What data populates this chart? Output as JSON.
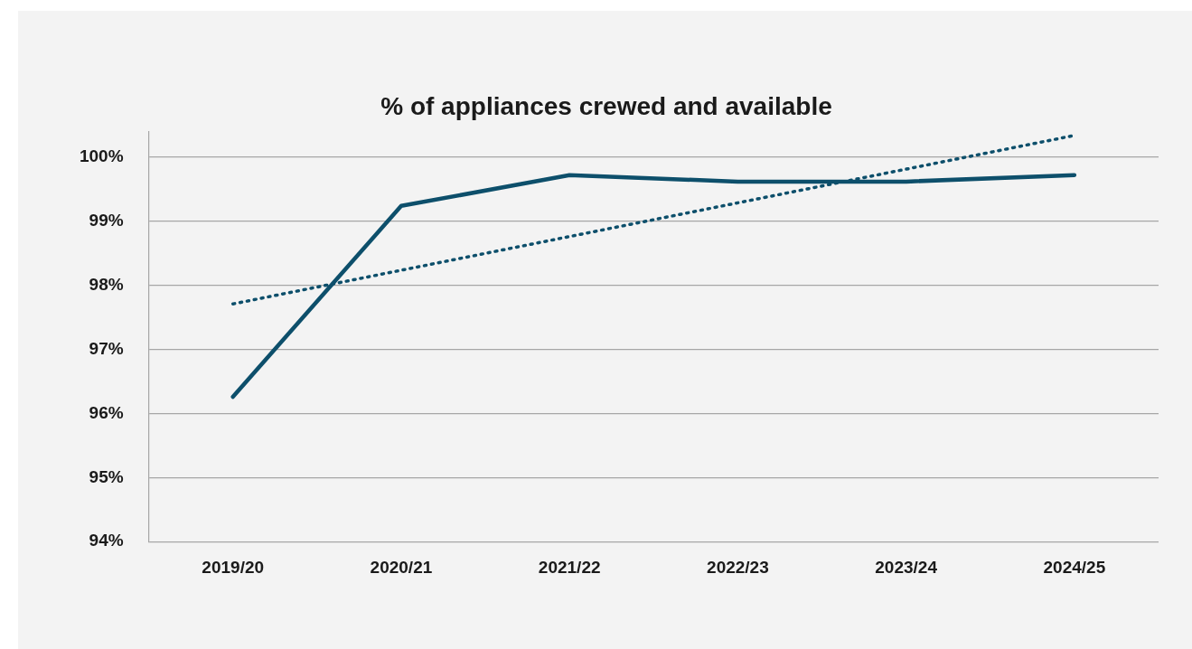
{
  "chart_data": {
    "type": "line",
    "title": "% of appliances crewed and available",
    "categories": [
      "2019/20",
      "2020/21",
      "2021/22",
      "2022/23",
      "2023/24",
      "2024/25"
    ],
    "series": [
      {
        "color": "#0d4f6b",
        "values": [
          96.26,
          99.24,
          99.72,
          99.62,
          99.62,
          99.72
        ],
        "line_style": "solid"
      },
      {
        "type": "line",
        "color": "#0d4f6b",
        "x": [
          "2019/20",
          "2024/25"
        ],
        "values": [
          97.71,
          100.34
        ],
        "line_style": "dotted"
      }
    ],
    "ylim": [
      94,
      100.4
    ],
    "yticks": [
      {
        "value": 94,
        "label": "94%"
      },
      {
        "value": 95,
        "label": "95%"
      },
      {
        "value": 96,
        "label": "96%"
      },
      {
        "value": 97,
        "label": "97%"
      },
      {
        "value": 98,
        "label": "98%"
      },
      {
        "value": 99,
        "label": "99%"
      },
      {
        "value": 100,
        "label": "100%"
      }
    ],
    "grid": "y",
    "legend": false,
    "marker": "none"
  }
}
